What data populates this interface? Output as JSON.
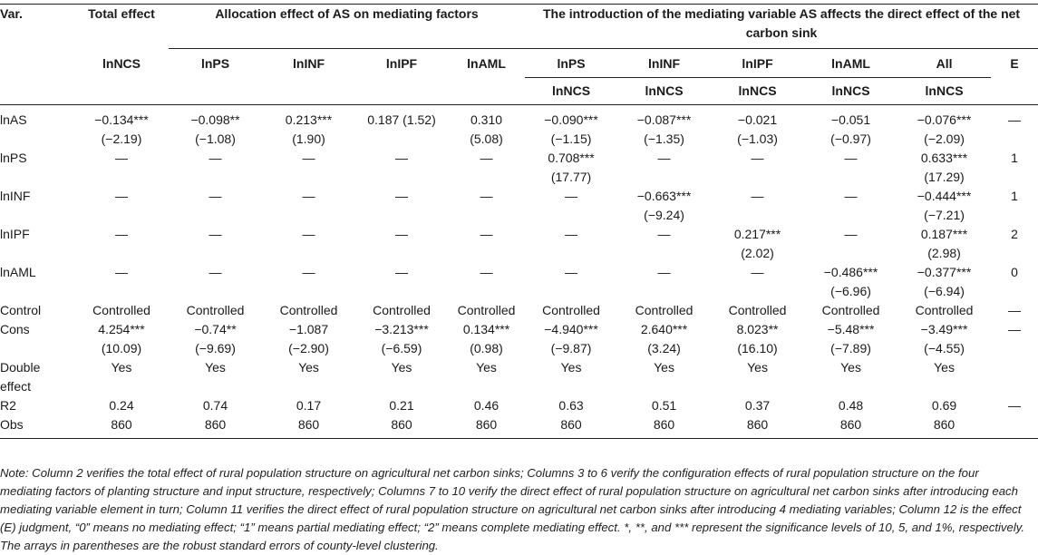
{
  "header": {
    "var": "Var.",
    "total_effect": "Total effect",
    "allocation": "Allocation effect of AS on mediating factors",
    "introduction": "The introduction of the mediating variable AS affects the direct effect of the net carbon sink",
    "cols_row1": [
      "lnNCS",
      "lnPS",
      "lnINF",
      "lnIPF",
      "lnAML",
      "lnPS",
      "lnINF",
      "lnIPF",
      "lnAML",
      "All",
      "E"
    ],
    "cols_row2": [
      "lnNCS",
      "lnNCS",
      "lnNCS",
      "lnNCS",
      "lnNCS"
    ]
  },
  "rows": [
    {
      "label": "lnAS",
      "cells": [
        "−0.134***\n(−2.19)",
        "−0.098**\n(−1.08)",
        "0.213***\n(1.90)",
        "0.187 (1.52)",
        "0.310\n(5.08)",
        "−0.090***\n(−1.15)",
        "−0.087***\n(−1.35)",
        "−0.021\n(−1.03)",
        "−0.051\n(−0.97)",
        "−0.076***\n(−2.09)",
        "—"
      ]
    },
    {
      "label": "lnPS",
      "cells": [
        "—",
        "—",
        "—",
        "—",
        "—",
        "0.708***\n(17.77)",
        "—",
        "—",
        "—",
        "0.633***\n(17.29)",
        "1"
      ]
    },
    {
      "label": "lnINF",
      "cells": [
        "—",
        "—",
        "—",
        "—",
        "—",
        "—",
        "−0.663***\n(−9.24)",
        "—",
        "—",
        "−0.444***\n(−7.21)",
        "1"
      ]
    },
    {
      "label": "lnIPF",
      "cells": [
        "—",
        "—",
        "—",
        "—",
        "—",
        "—",
        "—",
        "0.217***\n(2.02)",
        "—",
        "0.187***\n(2.98)",
        "2"
      ]
    },
    {
      "label": "lnAML",
      "cells": [
        "—",
        "—",
        "—",
        "—",
        "—",
        "—",
        "—",
        "—",
        "−0.486***\n(−6.96)",
        "−0.377***\n(−6.94)",
        "0"
      ]
    },
    {
      "label": "Control",
      "cells": [
        "Controlled",
        "Controlled",
        "Controlled",
        "Controlled",
        "Controlled",
        "Controlled",
        "Controlled",
        "Controlled",
        "Controlled",
        "Controlled",
        "—"
      ]
    },
    {
      "label": "Cons",
      "cells": [
        "4.254***\n(10.09)",
        "−0.74**\n(−9.69)",
        "−1.087\n(−2.90)",
        "−3.213***\n(−6.59)",
        "0.134***\n(0.98)",
        "−4.940***\n(−9.87)",
        "2.640***\n(3.24)",
        "8.023**\n(16.10)",
        "−5.48***\n(−7.89)",
        "−3.49***\n(−4.55)",
        "—"
      ]
    },
    {
      "label": "Double\neffect",
      "cells": [
        "Yes",
        "Yes",
        "Yes",
        "Yes",
        "Yes",
        "Yes",
        "Yes",
        "Yes",
        "Yes",
        "Yes",
        ""
      ]
    },
    {
      "label": "R2",
      "cells": [
        "0.24",
        "0.74",
        "0.17",
        "0.21",
        "0.46",
        "0.63",
        "0.51",
        "0.37",
        "0.48",
        "0.69",
        "—"
      ]
    },
    {
      "label": "Obs",
      "cells": [
        "860",
        "860",
        "860",
        "860",
        "860",
        "860",
        "860",
        "860",
        "860",
        "860",
        ""
      ]
    }
  ],
  "note": "Note: Column 2 verifies the total effect of rural population structure on agricultural net carbon sinks; Columns 3 to 6 verify the configuration effects of rural population structure on the four mediating factors of planting structure and input structure, respectively; Columns 7 to 10 verify the direct effect of rural population structure on agricultural net carbon sinks after introducing each mediating variable element in turn; Column 11 verifies the direct effect of rural population structure on agricultural net carbon sinks after introducing 4 mediating variables; Column 12 is the effect (E) judgment, “0” means no mediating effect; “1” means partial mediating effect; “2” means complete mediating effect. *, **, and *** represent the significance levels of 10, 5, and 1%, respectively. The arrays in parentheses are the robust standard errors of county-level clustering."
}
